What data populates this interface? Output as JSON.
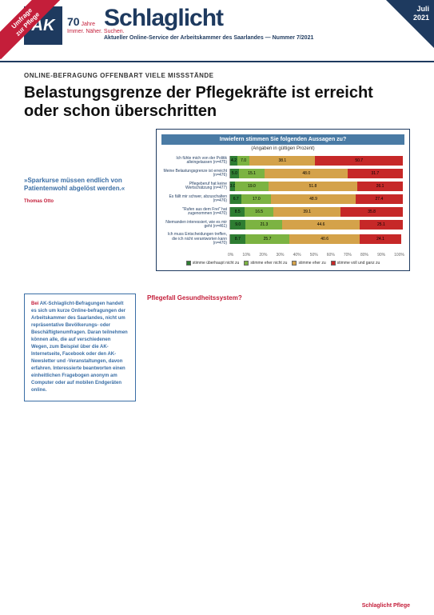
{
  "ribbon": {
    "line1": "Umfrage",
    "line2": "zur Pflege"
  },
  "corner": {
    "month": "Juli",
    "year": "2021"
  },
  "logo": {
    "mark": "AK",
    "years": "70",
    "years_label": "Jahre",
    "tagline": "Immer.\nNäher.\nSuchen."
  },
  "masthead": "Schlaglicht",
  "subhead": "Aktueller Online-Service der Arbeitskammer des Saarlandes — Nummer 7/2021",
  "kicker": "ONLINE-BEFRAGUNG OFFENBART VIELE MISSSTÄNDE",
  "headline": "Belastungsgrenze der Pflegekräfte ist erreicht oder schon überschritten",
  "quote": "»Sparkurse müssen endlich von Patientenwohl abgelöst werden.«",
  "quote_attr": "Thomas Otto",
  "chart": {
    "title": "Inwiefern stimmen Sie folgenden Aussagen zu?",
    "subtitle": "(Angaben in gültigen Prozent)",
    "colors": {
      "c0": "#2e7d32",
      "c1": "#7cb342",
      "c2": "#d4a24a",
      "c3": "#c62828",
      "grid": "#d0d0d0",
      "bg": "#ffffff"
    },
    "font_size": 5,
    "xlim": [
      0,
      100
    ],
    "xtick_step": 10,
    "categories": [
      {
        "label": "Ich fühle mich von der Politik alleingelassen (n=475)",
        "values": [
          4.2,
          7.0,
          38.1,
          50.7
        ]
      },
      {
        "label": "Meine Belastungsgrenze ist erreicht (n=476)",
        "values": [
          5.0,
          15.1,
          48.0,
          31.7
        ]
      },
      {
        "label": "Pflegeberuf hat keine Wertschätzung (n=477)",
        "values": [
          3.0,
          19.0,
          51.8,
          26.1
        ]
      },
      {
        "label": "Es fällt mir schwer, abzuschalten (n=476)",
        "values": [
          6.7,
          17.0,
          48.9,
          27.4
        ]
      },
      {
        "label": "\"Rufen aus dem Frei\" hat zugenommen (n=470)",
        "values": [
          8.5,
          16.5,
          39.1,
          35.8
        ]
      },
      {
        "label": "Niemanden interessiert, wie es mir geht (n=461)",
        "values": [
          9.0,
          21.3,
          44.6,
          25.1
        ]
      },
      {
        "label": "Ich muss Entscheidungen treffen, die ich nicht verantworten kann (n=470)",
        "values": [
          8.7,
          25.7,
          40.6,
          24.1
        ]
      }
    ],
    "axis_labels": [
      "0%",
      "10%",
      "20%",
      "30%",
      "40%",
      "50%",
      "60%",
      "70%",
      "80%",
      "90%",
      "100%"
    ],
    "legend": [
      "stimme überhaupt nicht zu",
      "stimme eher nicht zu",
      "stimme eher zu",
      "stimme voll und ganz zu"
    ]
  },
  "callout": {
    "title": "Bei",
    "title2": " AK-Schlaglicht-Befragungen",
    "body": " handelt es sich um kurze Online-befragungen der Arbeitskammer des Saarlandes, nicht um repräsentative Bevölkerungs- oder Beschäftigtenumfragen. Daran teilnehmen können alle, die auf verschiedenen Wegen, zum Beispiel über die AK-Internetseite, Facebook oder den AK-Newsletter und -Veranstaltungen, davon erfahren. Interessierte beantworten einen einheitlichen Fragebogen anonym am Computer oder auf mobilen Endgeräten online."
  },
  "subhead2": "Pflegefall Gesundheitssystem?",
  "footer": "Schlaglicht Pflege"
}
